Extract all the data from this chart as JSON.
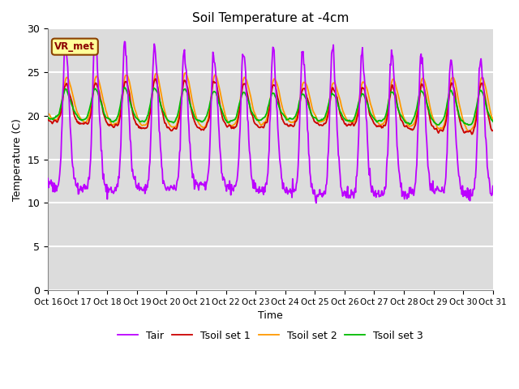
{
  "title": "Soil Temperature at -4cm",
  "xlabel": "Time",
  "ylabel": "Temperature (C)",
  "ylim": [
    0,
    30
  ],
  "xlim": [
    0,
    360
  ],
  "background_color": "#dcdcdc",
  "grid_color": "#ffffff",
  "colors": {
    "Tair": "#bb00ff",
    "Tsoil1": "#cc0000",
    "Tsoil2": "#ff9900",
    "Tsoil3": "#00bb00"
  },
  "legend_labels": [
    "Tair",
    "Tsoil set 1",
    "Tsoil set 2",
    "Tsoil set 3"
  ],
  "annotation_text": "VR_met",
  "tick_labels": [
    "Oct 16",
    "Oct 17",
    "Oct 18",
    "Oct 19",
    "Oct 20",
    "Oct 21",
    "Oct 22",
    "Oct 23",
    "Oct 24",
    "Oct 25",
    "Oct 26",
    "Oct 27",
    "Oct 28",
    "Oct 29",
    "Oct 30",
    "Oct 31"
  ],
  "tick_positions": [
    0,
    24,
    48,
    72,
    96,
    120,
    144,
    168,
    192,
    216,
    240,
    264,
    288,
    312,
    336,
    360
  ]
}
